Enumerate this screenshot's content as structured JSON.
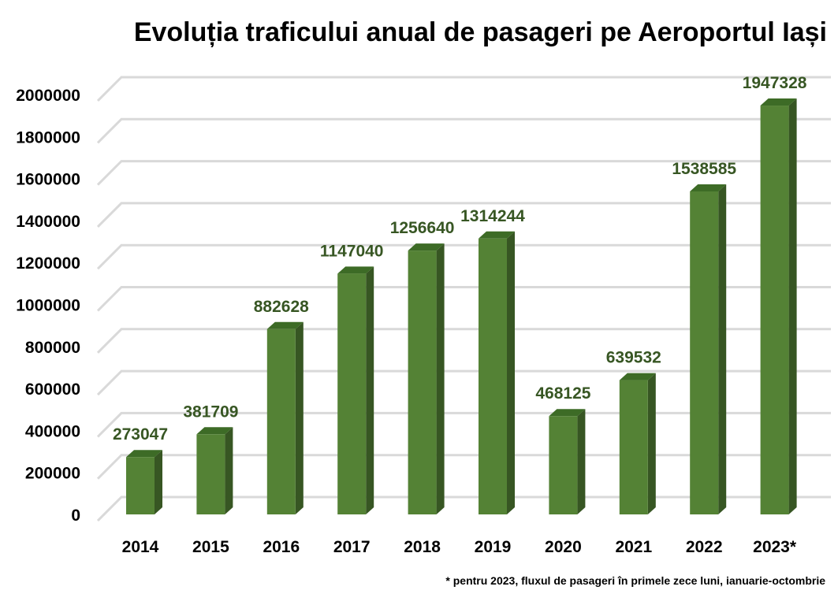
{
  "chart_data": {
    "type": "bar",
    "title": "Evoluția traficului anual de pasageri pe Aeroportul Iași",
    "categories": [
      "2014",
      "2015",
      "2016",
      "2017",
      "2018",
      "2019",
      "2020",
      "2021",
      "2022",
      "2023*"
    ],
    "values": [
      273047,
      381709,
      882628,
      1147040,
      1256640,
      1314244,
      468125,
      639532,
      1538585,
      1947328
    ],
    "data_labels": [
      "273047",
      "381709",
      "882628",
      "1147040",
      "1256640",
      "1314244",
      "468125",
      "639532",
      "1538585",
      "1947328"
    ],
    "xlabel": "",
    "ylabel": "",
    "ylim": [
      0,
      2000000
    ],
    "y_ticks": [
      "0",
      "200000",
      "400000",
      "600000",
      "800000",
      "1000000",
      "1200000",
      "1400000",
      "1600000",
      "1800000",
      "2000000"
    ],
    "grid": true,
    "style": "3d-column",
    "colors": {
      "bar_front": "#548235",
      "bar_side": "#375623",
      "bar_top": "#3d6b26",
      "label": "#375623",
      "grid": "#d9d9d9"
    }
  },
  "footnote": "* pentru 2023, fluxul de pasageri în primele zece luni, ianuarie-octombrie"
}
